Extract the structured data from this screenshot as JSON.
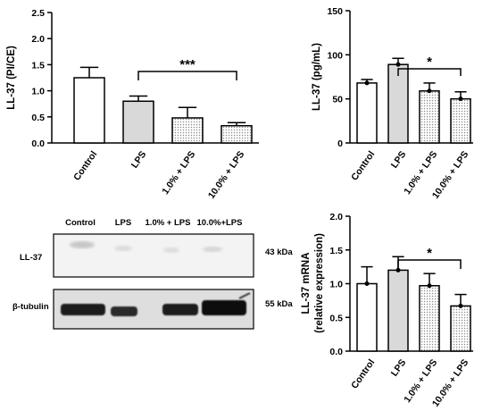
{
  "colors": {
    "control": "#ffffff",
    "lps": "#d9d9d9",
    "treated": "dotted-grey",
    "stroke": "#000000"
  },
  "chart_data": [
    {
      "type": "bar",
      "panel": "top-left",
      "categories": [
        "Control",
        "LPS",
        "1.0% + LPS",
        "10.0% + LPS"
      ],
      "values": [
        1.25,
        0.8,
        0.48,
        0.33
      ],
      "errors": [
        0.2,
        0.1,
        0.2,
        0.06
      ],
      "fills": [
        "white",
        "grey",
        "dotted",
        "dotted"
      ],
      "ylabel": "LL-37 (PI/CE)",
      "ylim": [
        0,
        2.5
      ],
      "yticks": [
        "0.0",
        "0.5",
        "1.0",
        "1.5",
        "2.0",
        "2.5"
      ],
      "significance": {
        "from": 1,
        "to": 3,
        "label": "***"
      },
      "points": false
    },
    {
      "type": "bar",
      "panel": "top-right",
      "categories": [
        "Control",
        "LPS",
        "1.0% + LPS",
        "10.0% + LPS"
      ],
      "values": [
        68,
        89,
        59,
        50
      ],
      "errors": [
        4,
        7,
        9,
        8
      ],
      "fills": [
        "white",
        "grey",
        "dotted",
        "dotted"
      ],
      "ylabel": "LL-37 (pg/mL)",
      "ylim": [
        0,
        150
      ],
      "yticks": [
        "0",
        "50",
        "100",
        "150"
      ],
      "significance": {
        "from": 1,
        "to": 3,
        "label": "*"
      },
      "points": true
    },
    {
      "type": "bar",
      "panel": "bottom-right",
      "categories": [
        "Control",
        "LPS",
        "1.0% + LPS",
        "10.0% + LPS"
      ],
      "values": [
        1.0,
        1.2,
        0.97,
        0.67
      ],
      "errors": [
        0.25,
        0.2,
        0.18,
        0.17
      ],
      "fills": [
        "white",
        "grey",
        "dotted",
        "dotted"
      ],
      "ylabel": "LL-37 mRNA (relative expression)",
      "ylabel_lines": [
        "LL-37 mRNA",
        "(relative expression)"
      ],
      "ylim": [
        0,
        2.0
      ],
      "yticks": [
        "0.0",
        "0.5",
        "1.0",
        "1.5",
        "2.0"
      ],
      "significance": {
        "from": 1,
        "to": 3,
        "label": "*"
      },
      "points": true
    }
  ],
  "blot": {
    "lanes": [
      "Control",
      "LPS",
      "1.0% + LPS",
      "10.0%+LPS"
    ],
    "rows": [
      {
        "name": "LL-37",
        "size": "43 kDa"
      },
      {
        "name": "β-tubulin",
        "size": "55 kDa"
      }
    ]
  }
}
